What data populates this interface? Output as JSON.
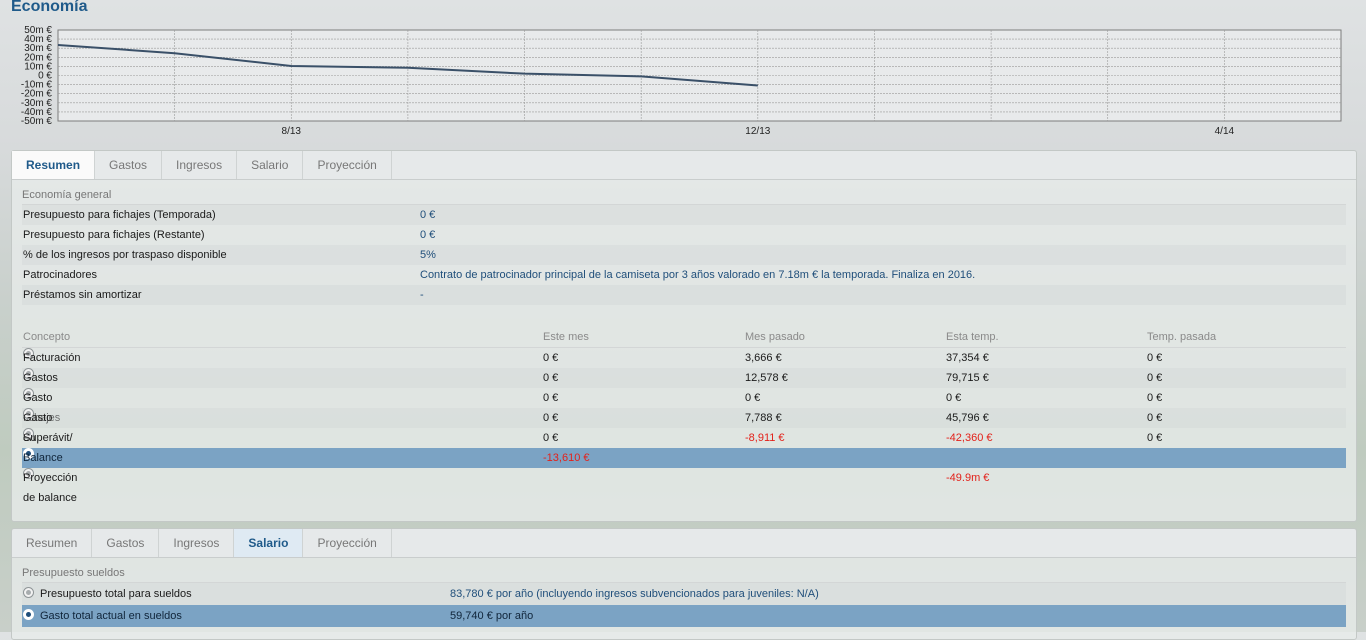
{
  "header": {
    "title": "Economía"
  },
  "chart_data": {
    "type": "line",
    "title": "",
    "xlabel": "",
    "ylabel": "",
    "ylim": [
      -50,
      50
    ],
    "y_tick_labels": [
      "50m €",
      "40m €",
      "30m €",
      "20m €",
      "10m €",
      "0 €",
      "-10m €",
      "-20m €",
      "-30m €",
      "-40m €",
      "-50m €"
    ],
    "x_tick_labels": [
      "8/13",
      "12/13",
      "4/14"
    ],
    "grid": true,
    "series": [
      {
        "values": [
          33.5,
          24.5,
          10.5,
          8.5,
          2,
          -1,
          -11
        ]
      }
    ],
    "colors": {
      "line": "#3a5068",
      "grid": "#9a9a9a",
      "plot_bg": "#e8eaeb"
    }
  },
  "panel1": {
    "tabs": [
      "Resumen",
      "Gastos",
      "Ingresos",
      "Salario",
      "Proyección"
    ],
    "general": {
      "heading": "Economía general",
      "rows": [
        {
          "label": "Presupuesto para fichajes (Temporada)",
          "value": "0 €"
        },
        {
          "label": "Presupuesto para fichajes (Restante)",
          "value": "0 €"
        },
        {
          "label": "% de los ingresos por traspaso disponible",
          "value": "5%"
        },
        {
          "label": "Patrocinadores",
          "value": "Contrato de patrocinador principal de la camiseta por 3 años valorado en 7.18m € la temporada. Finaliza en 2016."
        },
        {
          "label": "Préstamos sin amortizar",
          "value": "-"
        }
      ]
    },
    "table": {
      "headers": [
        "Concepto",
        "Este mes",
        "Mes pasado",
        "Esta temp.",
        "Temp. pasada"
      ],
      "rows": [
        {
          "name": "Facturación",
          "este_mes": "0 €",
          "mes_pasado": "3,666 €",
          "esta_temp": "37,354 €",
          "temp_pasada": "0 €"
        },
        {
          "name": "Gastos",
          "este_mes": "0 €",
          "mes_pasado": "12,578 €",
          "esta_temp": "79,715 €",
          "temp_pasada": "0 €"
        },
        {
          "name": "Gasto fichajes",
          "este_mes": "0 €",
          "mes_pasado": "0 €",
          "esta_temp": "0 €",
          "temp_pasada": "0 €"
        },
        {
          "name": "Gasto en sueldos",
          "este_mes": "0 €",
          "mes_pasado": "7,788 €",
          "esta_temp": "45,796 €",
          "temp_pasada": "0 €"
        },
        {
          "name": "Superávit/ (Déficit)",
          "este_mes": "0 €",
          "mes_pasado": "-8,911 €",
          "esta_temp": "-42,360 €",
          "temp_pasada": "0 €"
        },
        {
          "name": "Balance",
          "este_mes": "-13,610 €",
          "mes_pasado": "",
          "esta_temp": "",
          "temp_pasada": ""
        },
        {
          "name": "Proyección de balance",
          "este_mes": "",
          "mes_pasado": "",
          "esta_temp": "-49.9m €",
          "temp_pasada": ""
        }
      ]
    }
  },
  "panel2": {
    "tabs": [
      "Resumen",
      "Gastos",
      "Ingresos",
      "Salario",
      "Proyección"
    ],
    "heading": "Presupuesto sueldos",
    "rows": [
      {
        "label": "Presupuesto total para sueldos",
        "value": "83,780 € por año (incluyendo ingresos subvencionados para juveniles: N/A)"
      },
      {
        "label": "Gasto total actual en sueldos",
        "value": "59,740 € por año"
      }
    ]
  }
}
